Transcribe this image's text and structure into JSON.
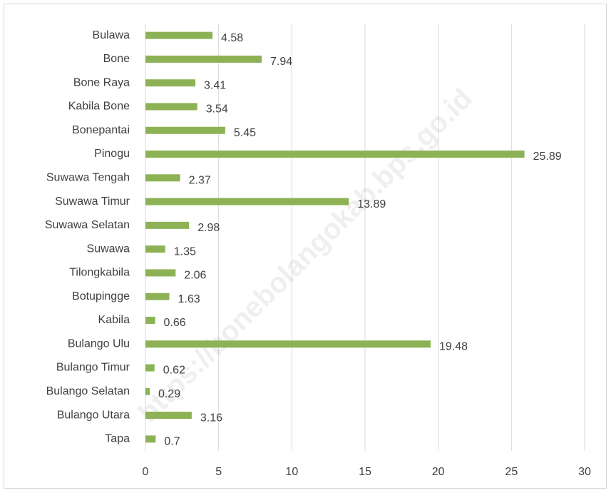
{
  "chart_data": {
    "type": "bar",
    "orientation": "horizontal",
    "categories": [
      "Bulawa",
      "Bone",
      "Bone Raya",
      "Kabila Bone",
      "Bonepantai",
      "Pinogu",
      "Suwawa Tengah",
      "Suwawa Timur",
      "Suwawa Selatan",
      "Suwawa",
      "Tilongkabila",
      "Botupingge",
      "Kabila",
      "Bulango Ulu",
      "Bulango Timur",
      "Bulango Selatan",
      "Bulango Utara",
      "Tapa"
    ],
    "values": [
      4.58,
      7.94,
      3.41,
      3.54,
      5.45,
      25.89,
      2.37,
      13.89,
      2.98,
      1.35,
      2.06,
      1.63,
      0.66,
      19.48,
      0.62,
      0.29,
      3.16,
      0.7
    ],
    "color": "#8db255",
    "xlim": [
      0,
      30
    ],
    "xticks": [
      0,
      5,
      10,
      15,
      20,
      25,
      30
    ],
    "grid": true,
    "watermark": "https://bonebolangokab.bps.go.id"
  }
}
